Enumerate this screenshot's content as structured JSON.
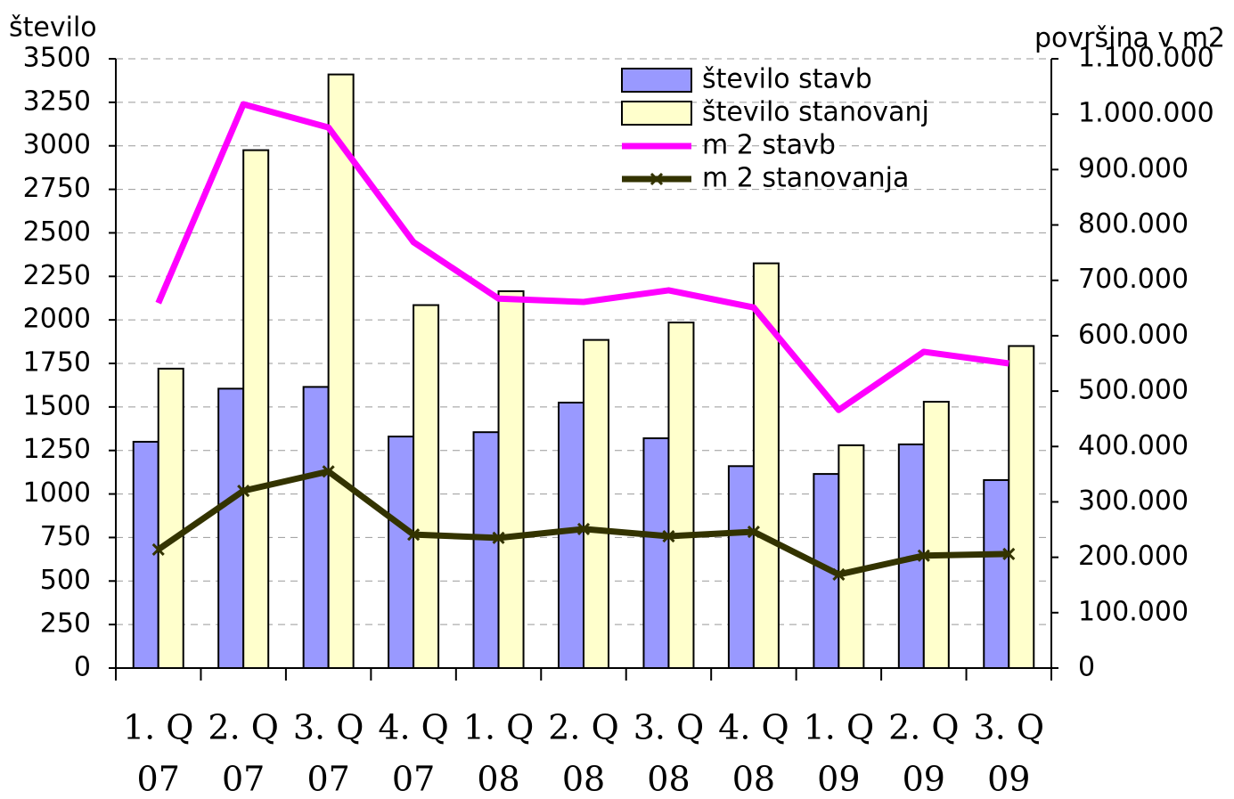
{
  "chart_data": {
    "type": "bar",
    "y_label": "število",
    "y2_label": "površina v m2",
    "categories": [
      [
        "1. Q",
        "07"
      ],
      [
        "2. Q",
        "07"
      ],
      [
        "3. Q",
        "07"
      ],
      [
        "4. Q",
        "07"
      ],
      [
        "1. Q",
        "08"
      ],
      [
        "2. Q",
        "08"
      ],
      [
        "3. Q",
        "08"
      ],
      [
        "4. Q",
        "08"
      ],
      [
        "1. Q",
        "09"
      ],
      [
        "2. Q",
        "09"
      ],
      [
        "3. Q",
        "09"
      ]
    ],
    "series": [
      {
        "name": "število stavb",
        "type": "bar",
        "color": "#9999ff",
        "values": [
          1300,
          1605,
          1615,
          1330,
          1355,
          1525,
          1320,
          1160,
          1115,
          1285,
          1080
        ]
      },
      {
        "name": "število stanovanj",
        "type": "bar",
        "color": "#ffffcc",
        "values": [
          1720,
          2975,
          3410,
          2085,
          2165,
          1885,
          1985,
          2325,
          1280,
          1530,
          1850
        ]
      },
      {
        "name": "m 2 stavb",
        "type": "line",
        "axis": "y2",
        "color": "#ff00ff",
        "values": [
          659000,
          1018000,
          976000,
          769000,
          667000,
          661000,
          682000,
          651000,
          466000,
          571000,
          550000
        ]
      },
      {
        "name": "m 2 stanovanja",
        "type": "line",
        "axis": "y2",
        "marker": "x",
        "color": "#333300",
        "values": [
          214000,
          320000,
          355000,
          241000,
          235000,
          251000,
          238000,
          246000,
          169000,
          203000,
          206000
        ]
      }
    ],
    "ylim": [
      0,
      3500
    ],
    "yticks": [
      0,
      250,
      500,
      750,
      1000,
      1250,
      1500,
      1750,
      2000,
      2250,
      2500,
      2750,
      3000,
      3250,
      3500
    ],
    "y2lim": [
      0,
      1100000
    ],
    "y2ticks": [
      {
        "value": 0,
        "label": "0"
      },
      {
        "value": 100000,
        "label": "100.000"
      },
      {
        "value": 200000,
        "label": "200.000"
      },
      {
        "value": 300000,
        "label": "300.000"
      },
      {
        "value": 400000,
        "label": "400.000"
      },
      {
        "value": 500000,
        "label": "500.000"
      },
      {
        "value": 600000,
        "label": "600.000"
      },
      {
        "value": 700000,
        "label": "700.000"
      },
      {
        "value": 800000,
        "label": "800.000"
      },
      {
        "value": 900000,
        "label": "900.000"
      },
      {
        "value": 1000000,
        "label": "1.000.000"
      },
      {
        "value": 1100000,
        "label": "1.100.000"
      }
    ],
    "grid": true,
    "legend": "top-right"
  }
}
